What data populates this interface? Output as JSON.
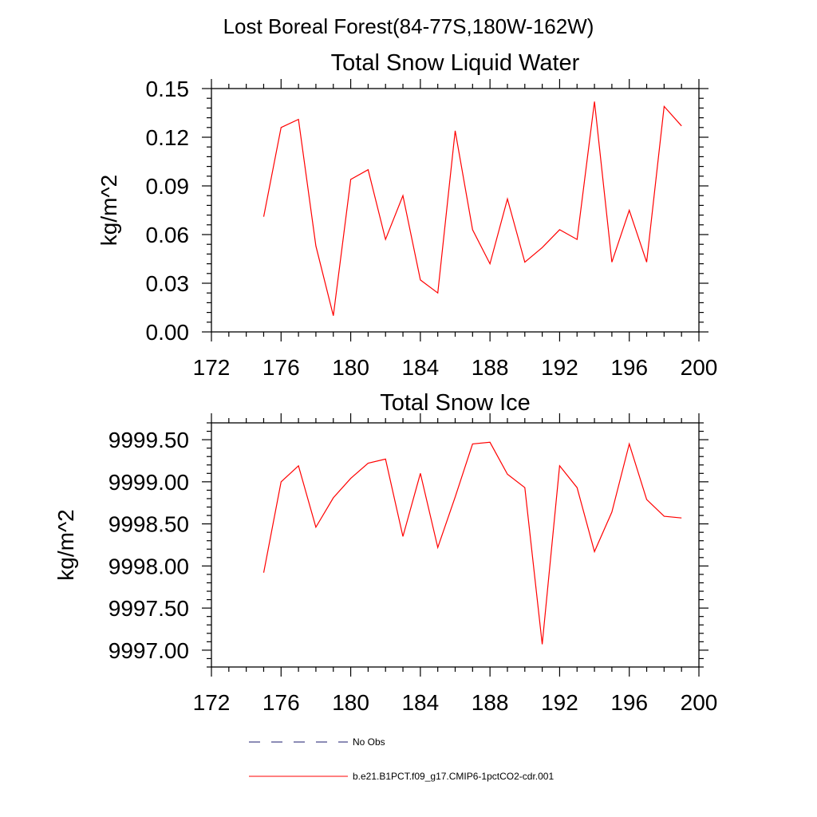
{
  "figure": {
    "supertitle": "Lost Boreal Forest(84-77S,180W-162W)"
  },
  "chart_data": [
    {
      "type": "line",
      "title": "Total Snow Liquid Water",
      "xlabel": "",
      "ylabel": "kg/m^2",
      "xlim": [
        172,
        200
      ],
      "ylim": [
        0,
        0.15
      ],
      "xticks": [
        "172",
        "176",
        "180",
        "184",
        "188",
        "192",
        "196",
        "200"
      ],
      "yticks": [
        "0.00",
        "0.03",
        "0.06",
        "0.09",
        "0.12",
        "0.15"
      ],
      "x": [
        175,
        176,
        177,
        178,
        179,
        180,
        181,
        182,
        183,
        184,
        185,
        186,
        187,
        188,
        189,
        190,
        191,
        192,
        193,
        194,
        195,
        196,
        197,
        198,
        199
      ],
      "series": [
        {
          "name": "b.e21.B1PCT.f09_g17.CMIP6-1pctCO2-cdr.001",
          "color": "#ff0000",
          "values": [
            0.071,
            0.126,
            0.131,
            0.053,
            0.01,
            0.094,
            0.1,
            0.057,
            0.084,
            0.032,
            0.024,
            0.124,
            0.063,
            0.042,
            0.082,
            0.043,
            0.052,
            0.063,
            0.057,
            0.142,
            0.043,
            0.075,
            0.043,
            0.139,
            0.127
          ]
        }
      ]
    },
    {
      "type": "line",
      "title": "Total Snow Ice",
      "xlabel": "",
      "ylabel": "kg/m^2",
      "xlim": [
        172,
        200
      ],
      "ylim": [
        9996.8,
        9999.7
      ],
      "xticks": [
        "172",
        "176",
        "180",
        "184",
        "188",
        "192",
        "196",
        "200"
      ],
      "yticks": [
        "9997.00",
        "9997.50",
        "9998.00",
        "9998.50",
        "9999.00",
        "9999.50"
      ],
      "x": [
        175,
        176,
        177,
        178,
        179,
        180,
        181,
        182,
        183,
        184,
        185,
        186,
        187,
        188,
        189,
        190,
        191,
        192,
        193,
        194,
        195,
        196,
        197,
        198,
        199
      ],
      "series": [
        {
          "name": "b.e21.B1PCT.f09_g17.CMIP6-1pctCO2-cdr.001",
          "color": "#ff0000",
          "values": [
            9997.92,
            9999.0,
            9999.19,
            9998.46,
            9998.81,
            9999.04,
            9999.22,
            9999.27,
            9998.35,
            9999.1,
            9998.22,
            9998.82,
            9999.45,
            9999.47,
            9999.09,
            9998.93,
            9997.07,
            9999.19,
            9998.93,
            9998.17,
            9998.64,
            9999.45,
            9998.79,
            9998.59,
            9998.57
          ]
        }
      ]
    }
  ],
  "legend": {
    "items": [
      {
        "label": "No Obs",
        "color": "#1a1a6e",
        "style": "dashed"
      },
      {
        "label": "b.e21.B1PCT.f09_g17.CMIP6-1pctCO2-cdr.001",
        "color": "#ff0000",
        "style": "solid"
      }
    ]
  }
}
